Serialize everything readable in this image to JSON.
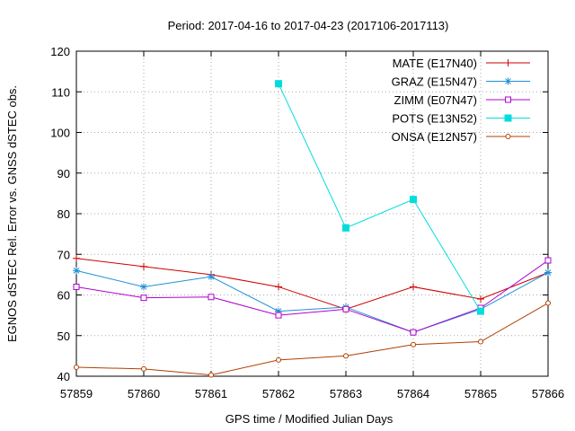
{
  "chart_data": {
    "type": "line",
    "title": "Period: 2017-04-16 to 2017-04-23 (2017106-2017113)",
    "xlabel": "GPS time / Modified Julian Days",
    "ylabel": "EGNOS dSTEC Rel. Error vs. GNSS dSTEC obs.",
    "xlim": [
      57859,
      57866
    ],
    "ylim": [
      40,
      120
    ],
    "x_ticks": [
      57859,
      57860,
      57861,
      57862,
      57863,
      57864,
      57865,
      57866
    ],
    "y_ticks": [
      40,
      50,
      60,
      70,
      80,
      90,
      100,
      110,
      120
    ],
    "grid": true,
    "legend_position": "top-right",
    "series": [
      {
        "name": "MATE (E17N40)",
        "color": "#cc0000",
        "marker": "plus",
        "x": [
          57859,
          57860,
          57861,
          57862,
          57863,
          57864,
          57865,
          57866
        ],
        "y": [
          69,
          67,
          65,
          62,
          56.5,
          62,
          59,
          65.5
        ]
      },
      {
        "name": "GRAZ (E15N47)",
        "color": "#1e90d8",
        "marker": "star",
        "x": [
          57859,
          57860,
          57861,
          57862,
          57863,
          57864,
          57865,
          57866
        ],
        "y": [
          66,
          62,
          64.5,
          56,
          57,
          50.8,
          56.5,
          65.5
        ]
      },
      {
        "name": "ZIMM (E07N47)",
        "color": "#b000d0",
        "marker": "square-open",
        "x": [
          57859,
          57860,
          57861,
          57862,
          57863,
          57864,
          57865,
          57866
        ],
        "y": [
          62,
          59.3,
          59.5,
          55,
          56.5,
          50.8,
          56.8,
          68.5
        ]
      },
      {
        "name": "POTS (E13N52)",
        "color": "#00dddd",
        "marker": "square-filled",
        "x": [
          57862,
          57863,
          57864,
          57865
        ],
        "y": [
          112,
          76.5,
          83.5,
          56
        ]
      },
      {
        "name": "ONSA (E12N57)",
        "color": "#b04000",
        "marker": "circle-open",
        "x": [
          57859,
          57860,
          57861,
          57862,
          57863,
          57864,
          57865,
          57866
        ],
        "y": [
          42.2,
          41.8,
          40.3,
          44,
          45,
          47.8,
          48.5,
          58
        ]
      }
    ]
  }
}
